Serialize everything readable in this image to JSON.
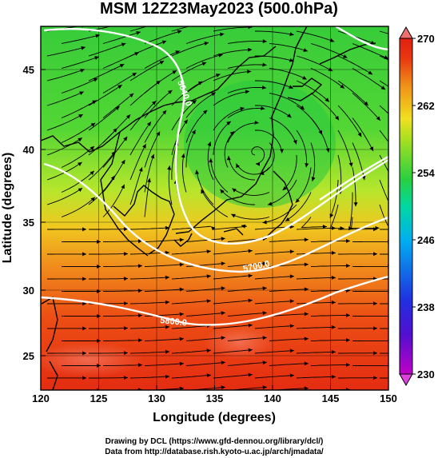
{
  "title": "MSM 12Z23May2023 (500.0hPa)",
  "x_axis": {
    "label": "Longitude (degrees)",
    "range": [
      120,
      150
    ],
    "ticks": [
      "120",
      "125",
      "130",
      "135",
      "140",
      "145",
      "150"
    ]
  },
  "y_axis": {
    "label": "Latitude  (degrees)",
    "range": [
      22.4,
      47.6
    ],
    "ticks": [
      "25",
      "30",
      "35",
      "40",
      "45"
    ]
  },
  "colorbar": {
    "range": [
      230,
      270
    ],
    "ticks": [
      "230",
      "238",
      "246",
      "254",
      "262",
      "270"
    ],
    "colors": [
      "#c000c8",
      "#3020d0",
      "#00a8e8",
      "#00d890",
      "#40d020",
      "#f0e020",
      "#f09018",
      "#e82010",
      "#e02010"
    ]
  },
  "contours": [
    {
      "label": "5700.0"
    },
    {
      "label": "5800.0"
    },
    {
      "label": "5640.0"
    }
  ],
  "credits": {
    "line1": "Drawing by DCL (https://www.gfd-dennou.org/library/dcl/)",
    "line2": "Data from http://database.rish.kyoto-u.ac.jp/arch/jmadata/"
  }
}
